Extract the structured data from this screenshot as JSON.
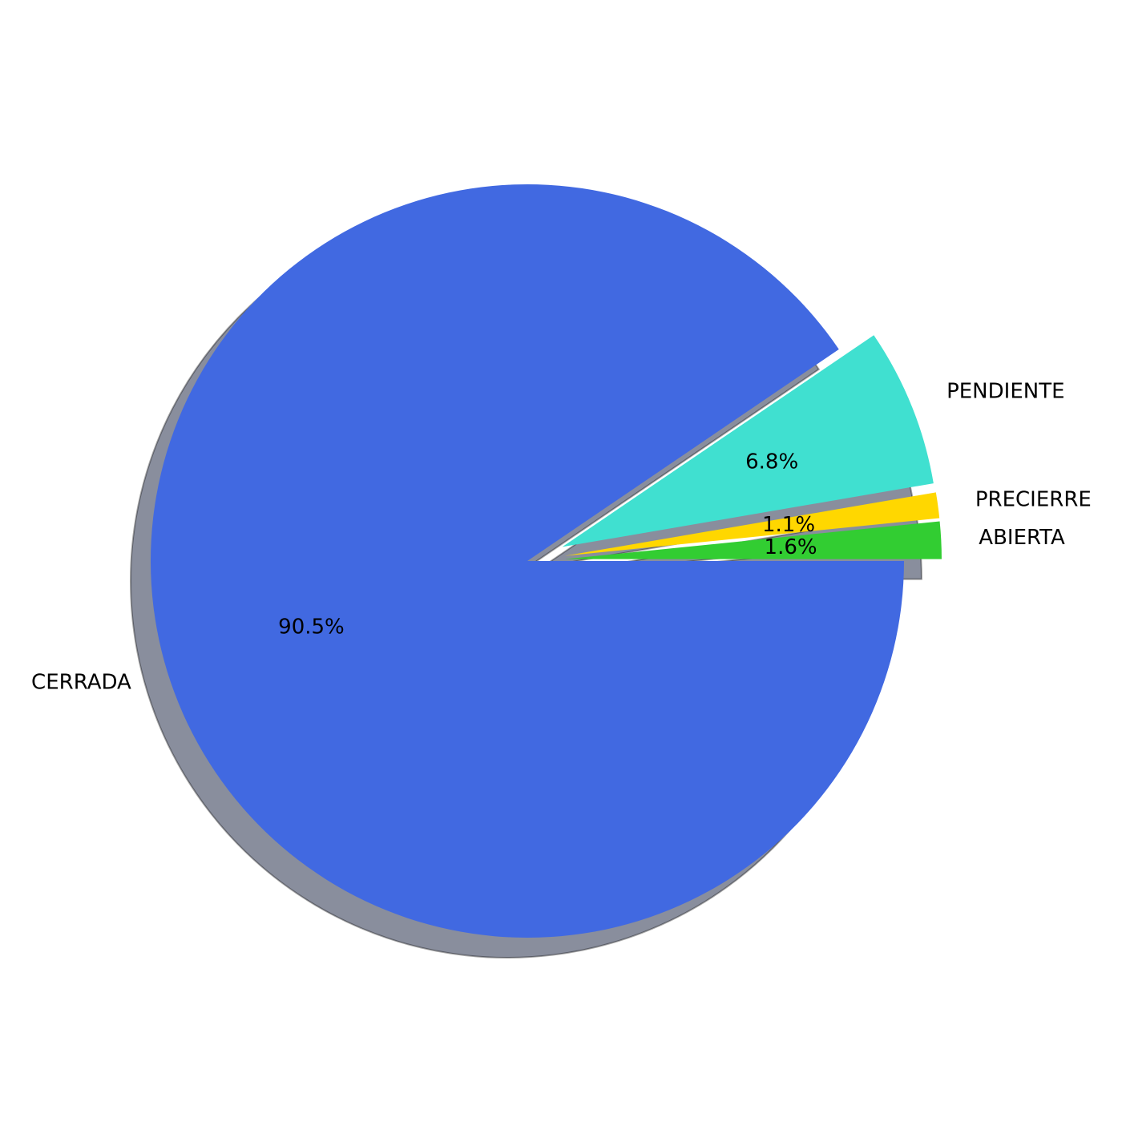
{
  "chart_data": {
    "type": "pie",
    "title": "",
    "start_angle_deg": 0,
    "direction": "counterclockwise",
    "shadow": true,
    "slices": [
      {
        "label": "ABIERTA",
        "value": 1.6,
        "percent_label": "1.6%",
        "color": "#32CD32",
        "exploded": true
      },
      {
        "label": "PRECIERRE",
        "value": 1.1,
        "percent_label": "1.1%",
        "color": "#FFD700",
        "exploded": true
      },
      {
        "label": "PENDIENTE",
        "value": 6.8,
        "percent_label": "6.8%",
        "color": "#40E0D0",
        "exploded": true
      },
      {
        "label": "CERRADA",
        "value": 90.5,
        "percent_label": "90.5%",
        "color": "#4169E1",
        "exploded": false
      }
    ]
  }
}
